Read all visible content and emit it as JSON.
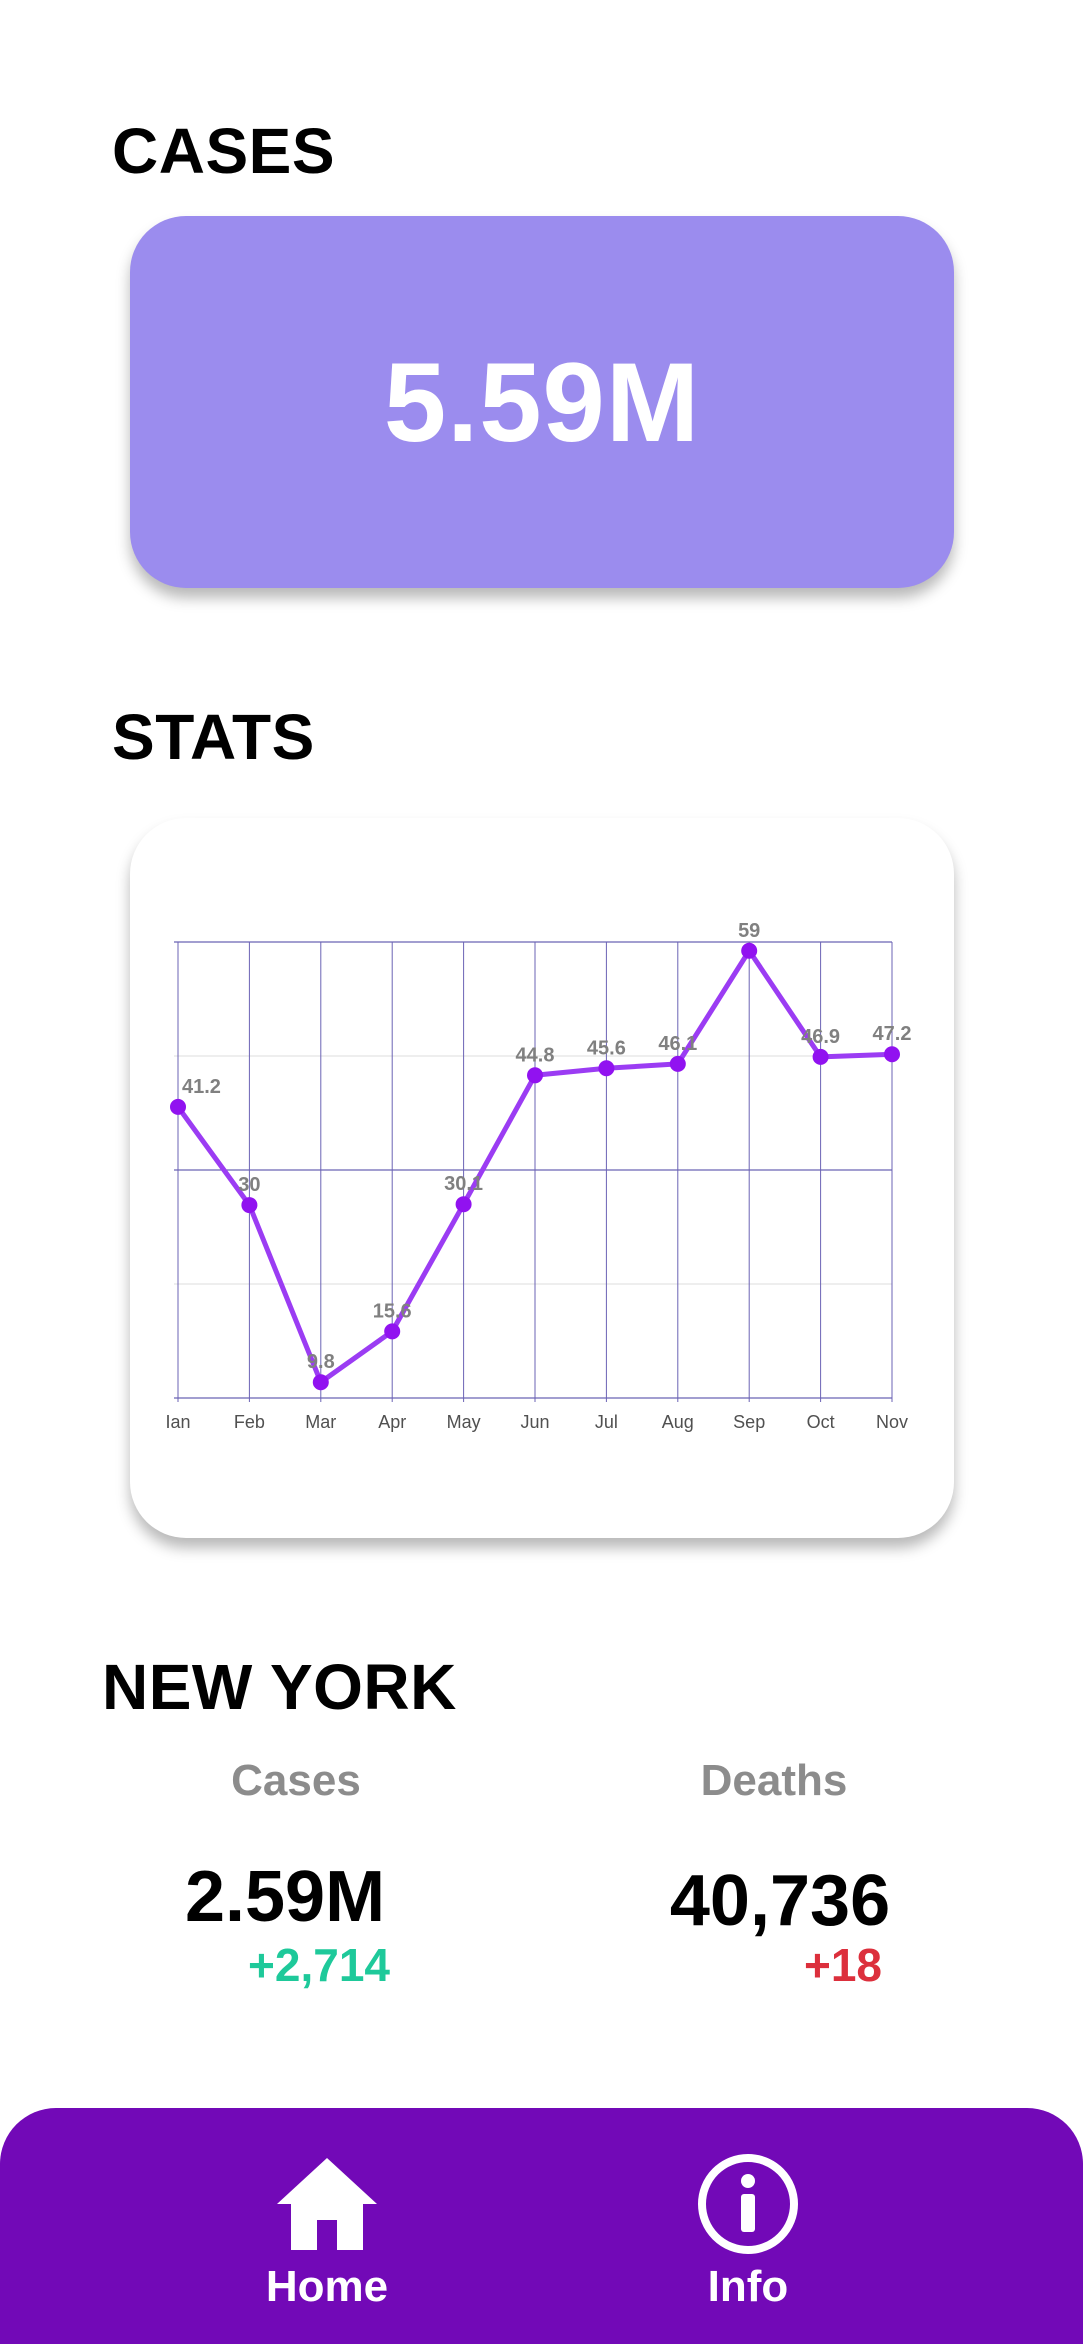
{
  "cases_section": {
    "title": "CASES",
    "total": "5.59M"
  },
  "stats_section": {
    "title": "STATS"
  },
  "chart_data": {
    "type": "line",
    "categories": [
      "Jan",
      "Feb",
      "Mar",
      "Apr",
      "May",
      "Jun",
      "Jul",
      "Aug",
      "Sep",
      "Oct",
      "Nov"
    ],
    "tick_labels": [
      "Ian",
      "Feb",
      "Mar",
      "Apr",
      "May",
      "Jun",
      "Jul",
      "Aug",
      "Sep",
      "Oct",
      "Nov"
    ],
    "values": [
      41.2,
      30,
      9.8,
      15.6,
      30.1,
      44.8,
      45.6,
      46.1,
      59,
      46.9,
      47.2
    ],
    "data_labels": [
      "41.2",
      "30",
      "9.8",
      "15.6",
      "30.1",
      "44.8",
      "45.6",
      "46.1",
      "59",
      "46.9",
      "47.2"
    ],
    "ylim": [
      8,
      60
    ],
    "grid": true,
    "colors": {
      "line": "#9b3cf3",
      "marker": "#9112f0",
      "grid_major": "#6b63b5",
      "grid_minor": "#dcdcdc",
      "label": "#808080"
    }
  },
  "new_york": {
    "title": "NEW YORK",
    "cases": {
      "label": "Cases",
      "value": "2.59M",
      "delta": "+2,714",
      "delta_color": "#1ec99a"
    },
    "deaths": {
      "label": "Deaths",
      "value": "40,736",
      "delta": "+18",
      "delta_color": "#dc2f3c"
    }
  },
  "bottom_nav": {
    "background": "#7209b7",
    "items": [
      {
        "label": "Home",
        "icon": "home-icon"
      },
      {
        "label": "Info",
        "icon": "info-icon"
      }
    ]
  }
}
